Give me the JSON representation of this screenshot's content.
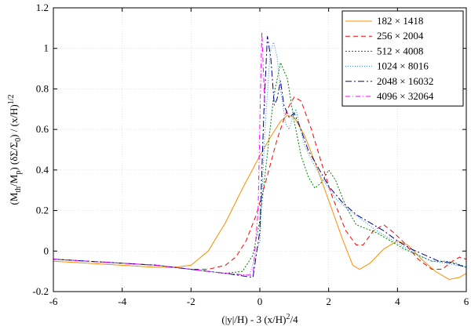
{
  "chart_data": {
    "type": "line",
    "title": "",
    "xlabel": "(|y|/H) - 3 (x/H)^2/4",
    "ylabel": "(M_th/M_p) (δΣ/Σ_0) / (x/H)^1/2",
    "xlim": [
      -6,
      6
    ],
    "ylim": [
      -0.2,
      1.2
    ],
    "xticks": [
      -6,
      -4,
      -2,
      0,
      2,
      4,
      6
    ],
    "yticks": [
      -0.2,
      0,
      0.2,
      0.4,
      0.6,
      0.8,
      1,
      1.2
    ],
    "xtick_labels": [
      "-6",
      "-4",
      "-2",
      "0",
      "2",
      "4",
      "6"
    ],
    "ytick_labels": [
      "-0.2",
      "0",
      "0.2",
      "0.4",
      "0.6",
      "0.8",
      "1",
      "1.2"
    ],
    "grid": true,
    "legend_position": "top-right",
    "series": [
      {
        "name": "182 × 1418",
        "color": "#ff8c00",
        "dash": "none",
        "points": [
          [
            -6,
            -0.05
          ],
          [
            -5,
            -0.06
          ],
          [
            -4,
            -0.07
          ],
          [
            -3,
            -0.08
          ],
          [
            -2.5,
            -0.08
          ],
          [
            -2,
            -0.07
          ],
          [
            -1.5,
            0.0
          ],
          [
            -1,
            0.14
          ],
          [
            -0.5,
            0.31
          ],
          [
            0,
            0.47
          ],
          [
            0.3,
            0.56
          ],
          [
            0.6,
            0.64
          ],
          [
            0.8,
            0.67
          ],
          [
            1.0,
            0.66
          ],
          [
            1.3,
            0.57
          ],
          [
            1.6,
            0.44
          ],
          [
            2.0,
            0.25
          ],
          [
            2.4,
            0.06
          ],
          [
            2.7,
            -0.07
          ],
          [
            2.9,
            -0.09
          ],
          [
            3.2,
            -0.06
          ],
          [
            3.6,
            0.01
          ],
          [
            4.0,
            0.05
          ],
          [
            4.3,
            0.03
          ],
          [
            4.7,
            -0.04
          ],
          [
            5.1,
            -0.1
          ],
          [
            5.5,
            -0.14
          ],
          [
            5.8,
            -0.13
          ],
          [
            6,
            -0.11
          ]
        ]
      },
      {
        "name": "256 × 2004",
        "color": "#ff0000",
        "dash": "6 4",
        "points": [
          [
            -6,
            -0.04
          ],
          [
            -5,
            -0.05
          ],
          [
            -4,
            -0.06
          ],
          [
            -3,
            -0.07
          ],
          [
            -2,
            -0.09
          ],
          [
            -1.5,
            -0.09
          ],
          [
            -1,
            -0.07
          ],
          [
            -0.7,
            -0.03
          ],
          [
            -0.4,
            0.05
          ],
          [
            -0.1,
            0.18
          ],
          [
            0.2,
            0.36
          ],
          [
            0.5,
            0.55
          ],
          [
            0.8,
            0.7
          ],
          [
            1.0,
            0.76
          ],
          [
            1.2,
            0.74
          ],
          [
            1.5,
            0.6
          ],
          [
            1.8,
            0.43
          ],
          [
            2.1,
            0.27
          ],
          [
            2.5,
            0.1
          ],
          [
            2.8,
            0.03
          ],
          [
            3.0,
            0.03
          ],
          [
            3.3,
            0.1
          ],
          [
            3.6,
            0.13
          ],
          [
            3.9,
            0.09
          ],
          [
            4.2,
            0.04
          ],
          [
            4.6,
            -0.04
          ],
          [
            5.0,
            -0.09
          ],
          [
            5.3,
            -0.09
          ],
          [
            5.6,
            -0.05
          ],
          [
            5.8,
            -0.03
          ],
          [
            6,
            -0.04
          ]
        ]
      },
      {
        "name": "512 × 4008",
        "color": "#008000",
        "dash": "2 2",
        "points": [
          [
            -6,
            -0.04
          ],
          [
            -5,
            -0.05
          ],
          [
            -4,
            -0.06
          ],
          [
            -3,
            -0.07
          ],
          [
            -2,
            -0.09
          ],
          [
            -1.5,
            -0.1
          ],
          [
            -1,
            -0.11
          ],
          [
            -0.5,
            -0.1
          ],
          [
            -0.2,
            -0.02
          ],
          [
            0.0,
            0.15
          ],
          [
            0.2,
            0.45
          ],
          [
            0.4,
            0.76
          ],
          [
            0.6,
            0.93
          ],
          [
            0.8,
            0.85
          ],
          [
            1.0,
            0.64
          ],
          [
            1.2,
            0.47
          ],
          [
            1.4,
            0.37
          ],
          [
            1.6,
            0.31
          ],
          [
            1.8,
            0.34
          ],
          [
            2.0,
            0.4
          ],
          [
            2.2,
            0.35
          ],
          [
            2.5,
            0.22
          ],
          [
            2.8,
            0.13
          ],
          [
            3.1,
            0.11
          ],
          [
            3.4,
            0.09
          ],
          [
            3.8,
            0.05
          ],
          [
            4.2,
            0.01
          ],
          [
            4.6,
            -0.02
          ],
          [
            5.0,
            -0.05
          ],
          [
            5.4,
            -0.05
          ],
          [
            5.7,
            -0.06
          ],
          [
            6,
            -0.08
          ]
        ]
      },
      {
        "name": "1024 × 8016",
        "color": "#1e90ff",
        "dash": "1 2",
        "points": [
          [
            -6,
            -0.04
          ],
          [
            -5,
            -0.05
          ],
          [
            -4,
            -0.06
          ],
          [
            -3,
            -0.07
          ],
          [
            -2,
            -0.09
          ],
          [
            -1,
            -0.11
          ],
          [
            -0.3,
            -0.12
          ],
          [
            0.0,
            0.05
          ],
          [
            0.15,
            0.6
          ],
          [
            0.3,
            0.98
          ],
          [
            0.4,
            1.03
          ],
          [
            0.5,
            0.96
          ],
          [
            0.6,
            0.8
          ],
          [
            0.75,
            0.63
          ],
          [
            0.85,
            0.6
          ],
          [
            0.95,
            0.66
          ],
          [
            1.05,
            0.7
          ],
          [
            1.15,
            0.62
          ],
          [
            1.3,
            0.52
          ],
          [
            1.5,
            0.45
          ],
          [
            1.8,
            0.36
          ],
          [
            2.2,
            0.26
          ],
          [
            2.6,
            0.2
          ],
          [
            3.0,
            0.15
          ],
          [
            3.4,
            0.1
          ],
          [
            3.8,
            0.06
          ],
          [
            4.2,
            0.02
          ],
          [
            4.6,
            -0.02
          ],
          [
            5.0,
            -0.05
          ],
          [
            5.4,
            -0.06
          ],
          [
            6,
            -0.08
          ]
        ]
      },
      {
        "name": "2048 × 16032",
        "color": "#00008b",
        "dash": "8 3 2 3",
        "points": [
          [
            -6,
            -0.04
          ],
          [
            -5,
            -0.05
          ],
          [
            -4,
            -0.06
          ],
          [
            -3,
            -0.07
          ],
          [
            -2,
            -0.09
          ],
          [
            -1,
            -0.11
          ],
          [
            -0.2,
            -0.13
          ],
          [
            0.0,
            0.1
          ],
          [
            0.12,
            0.7
          ],
          [
            0.22,
            1.06
          ],
          [
            0.32,
            0.95
          ],
          [
            0.42,
            0.72
          ],
          [
            0.5,
            0.75
          ],
          [
            0.6,
            0.84
          ],
          [
            0.7,
            0.72
          ],
          [
            0.85,
            0.66
          ],
          [
            1.0,
            0.68
          ],
          [
            1.15,
            0.62
          ],
          [
            1.4,
            0.5
          ],
          [
            1.7,
            0.41
          ],
          [
            2.0,
            0.32
          ],
          [
            2.4,
            0.24
          ],
          [
            2.8,
            0.18
          ],
          [
            3.2,
            0.14
          ],
          [
            3.6,
            0.1
          ],
          [
            4.0,
            0.05
          ],
          [
            4.4,
            0.01
          ],
          [
            4.8,
            -0.02
          ],
          [
            5.2,
            -0.05
          ],
          [
            5.6,
            -0.06
          ],
          [
            6,
            -0.08
          ]
        ]
      },
      {
        "name": "4096 × 32064",
        "color": "#ff00ff",
        "dash": "6 3 1 3",
        "points": [
          [
            -6,
            -0.04
          ],
          [
            -5,
            -0.05
          ],
          [
            -4,
            -0.06
          ],
          [
            -3,
            -0.07
          ],
          [
            -2,
            -0.09
          ],
          [
            -1,
            -0.11
          ],
          [
            -0.2,
            -0.12
          ],
          [
            -0.05,
            0.2
          ],
          [
            0.02,
            0.8
          ],
          [
            0.06,
            1.08
          ],
          [
            0.1,
            0.9
          ],
          [
            0.15,
            0.7
          ]
        ]
      }
    ]
  }
}
